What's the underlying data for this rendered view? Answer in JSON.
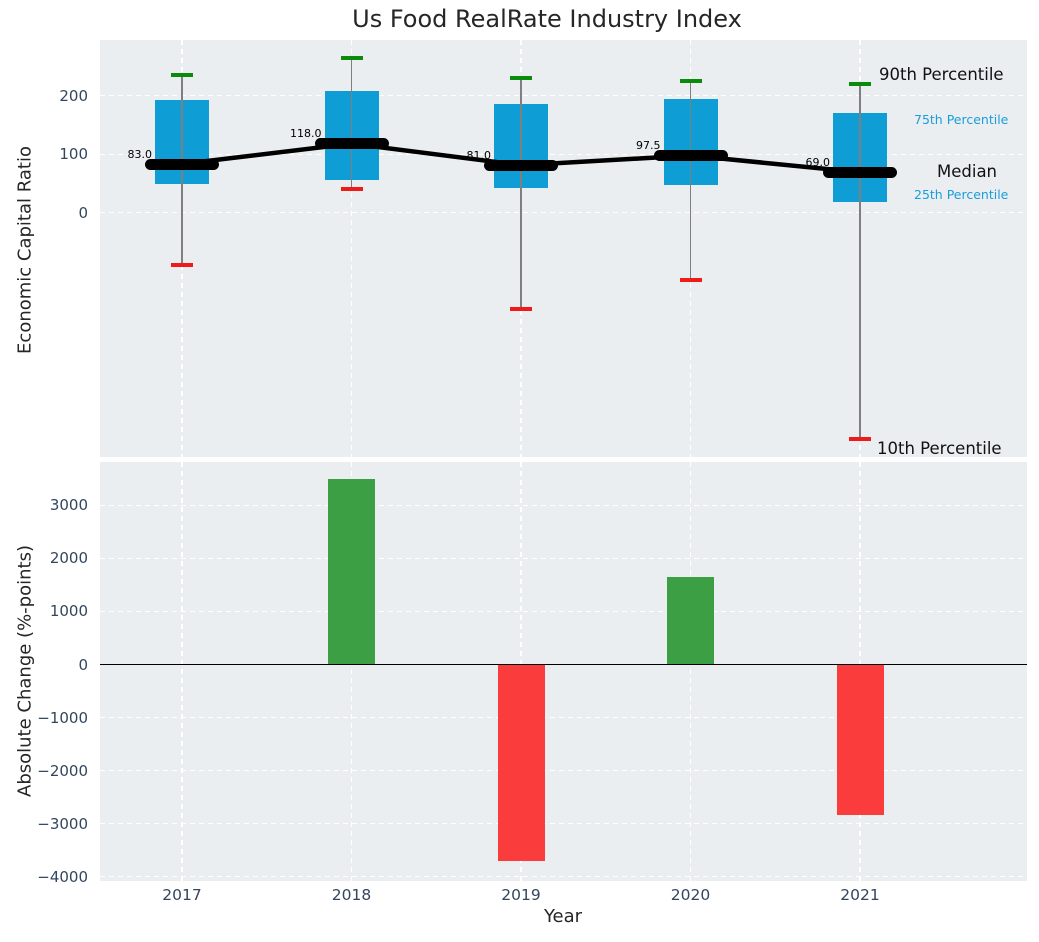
{
  "title": "Us Food RealRate Industry Index",
  "colors": {
    "panel_background": "#eaeef0",
    "box_fill": "#0f9dd6",
    "p90_cap": "#0b8b0b",
    "p10_cap": "#ef1a1a",
    "whisker": "#7f7f7f",
    "median_line": "#000000",
    "positive_bar": "#3d9f43",
    "negative_bar": "#fb3c3c",
    "tick_label": "#33465e",
    "axis_label": "#262626",
    "grid": "#ffffff",
    "legend_blue": "#1a9ed9",
    "zero_line": "#000000"
  },
  "chart_data": [
    {
      "type": "percentile-box-timeseries",
      "title": "Us Food RealRate Industry Index",
      "ylabel": "Economic Capital Ratio",
      "categories": [
        "2017",
        "2018",
        "2019",
        "2020",
        "2021"
      ],
      "yticks": [
        200,
        100,
        0
      ],
      "ylim": [
        -420,
        295
      ],
      "grid": true,
      "legend_position": "right",
      "series": [
        {
          "name": "90th Percentile",
          "values": [
            235,
            265,
            230,
            225,
            220
          ]
        },
        {
          "name": "75th Percentile",
          "values": [
            193,
            208,
            185,
            194,
            171
          ]
        },
        {
          "name": "Median",
          "values": [
            83,
            118,
            81,
            97.5,
            69
          ]
        },
        {
          "name": "25th Percentile",
          "values": [
            49,
            55,
            42,
            47,
            18
          ]
        },
        {
          "name": "10th Percentile",
          "values": [
            -90,
            40,
            -165,
            -116,
            -388
          ]
        }
      ],
      "median_point_labels": [
        "83.0",
        "118.0",
        "81.0",
        "97.5",
        "69.0"
      ],
      "legend_labels": {
        "p90": "90th Percentile",
        "p75": "75th Percentile",
        "median": "Median",
        "p25": "25th Percentile",
        "p10": "10th Percentile"
      }
    },
    {
      "type": "bar",
      "ylabel": "Absolute Change (%-points)",
      "xlabel": "Year",
      "categories": [
        "2017",
        "2018",
        "2019",
        "2020",
        "2021"
      ],
      "values": [
        null,
        3490,
        -3700,
        1640,
        -2840
      ],
      "yticks": [
        3000,
        2000,
        1000,
        0,
        -1000,
        -2000,
        -3000,
        -4000
      ],
      "ylim": [
        -4080,
        3815
      ],
      "grid": true,
      "zero_line": true
    }
  ]
}
